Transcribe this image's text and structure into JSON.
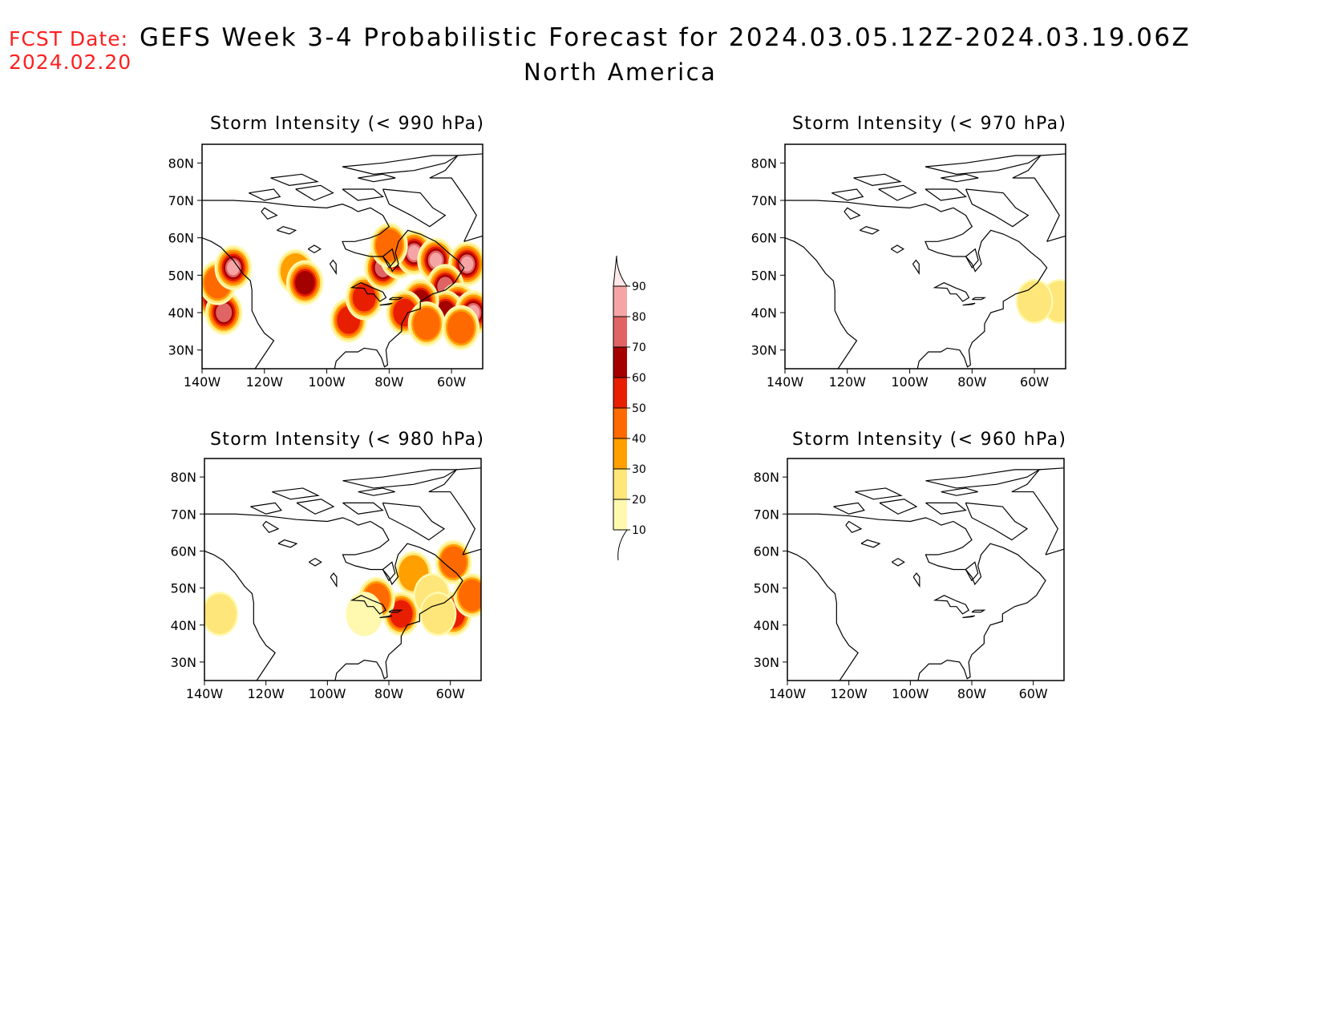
{
  "header": {
    "fcst_label": "FCST Date:",
    "fcst_date": "2024.02.20",
    "title": "GEFS Week 3-4 Probabilistic Forecast for 2024.03.05.12Z-2024.03.19.06Z",
    "region": "North America"
  },
  "panels": [
    {
      "id": "p990",
      "title": "Storm Intensity (< 990 hPa)"
    },
    {
      "id": "p970",
      "title": "Storm Intensity (< 970 hPa)"
    },
    {
      "id": "p980",
      "title": "Storm Intensity (< 980 hPa)"
    },
    {
      "id": "p960",
      "title": "Storm Intensity (< 960 hPa)"
    }
  ],
  "axes": {
    "lat_ticks": [
      "80N",
      "70N",
      "60N",
      "50N",
      "40N",
      "30N"
    ],
    "lon_ticks": [
      "140W",
      "120W",
      "100W",
      "80W",
      "60W"
    ],
    "lon_range": [
      -140,
      -50
    ],
    "lat_range": [
      25,
      85
    ]
  },
  "colorbar": {
    "levels": [
      10,
      20,
      30,
      40,
      50,
      60,
      70,
      80,
      90
    ],
    "colors": [
      "#fff9b0",
      "#ffe67a",
      "#ffa000",
      "#ff6a00",
      "#e81e00",
      "#a50000",
      "#e06464",
      "#f5a5a5",
      "#ffe8e8"
    ]
  },
  "chart_data": {
    "type": "heatmap",
    "units": "probability (%)",
    "panels": [
      {
        "id": "p990",
        "threshold_hPa": 990,
        "cells": [
          {
            "lon": -136,
            "lat": 44,
            "p": 65
          },
          {
            "lon": -133,
            "lat": 40,
            "p": 70
          },
          {
            "lon": -135,
            "lat": 48,
            "p": 45
          },
          {
            "lon": -130,
            "lat": 52,
            "p": 80
          },
          {
            "lon": -110,
            "lat": 51,
            "p": 35
          },
          {
            "lon": -107,
            "lat": 48,
            "p": 60
          },
          {
            "lon": -93,
            "lat": 38,
            "p": 55
          },
          {
            "lon": -88,
            "lat": 44,
            "p": 55
          },
          {
            "lon": -82,
            "lat": 52,
            "p": 70
          },
          {
            "lon": -77,
            "lat": 55,
            "p": 65
          },
          {
            "lon": -72,
            "lat": 56,
            "p": 85
          },
          {
            "lon": -65,
            "lat": 54,
            "p": 80
          },
          {
            "lon": -55,
            "lat": 53,
            "p": 85
          },
          {
            "lon": -62,
            "lat": 47,
            "p": 70
          },
          {
            "lon": -58,
            "lat": 42,
            "p": 85
          },
          {
            "lon": -62,
            "lat": 40,
            "p": 65
          },
          {
            "lon": -70,
            "lat": 43,
            "p": 60
          },
          {
            "lon": -75,
            "lat": 40,
            "p": 55
          },
          {
            "lon": -53,
            "lat": 40,
            "p": 85
          },
          {
            "lon": -80,
            "lat": 58,
            "p": 45
          },
          {
            "lon": -68,
            "lat": 37,
            "p": 45
          },
          {
            "lon": -57,
            "lat": 36,
            "p": 40
          }
        ]
      },
      {
        "id": "p970",
        "threshold_hPa": 970,
        "cells": [
          {
            "lon": -52,
            "lat": 43,
            "p": 25
          },
          {
            "lon": -60,
            "lat": 43,
            "p": 20
          }
        ]
      },
      {
        "id": "p980",
        "threshold_hPa": 980,
        "cells": [
          {
            "lon": -59,
            "lat": 43,
            "p": 55
          },
          {
            "lon": -76,
            "lat": 43,
            "p": 50
          },
          {
            "lon": -59,
            "lat": 57,
            "p": 40
          },
          {
            "lon": -53,
            "lat": 48,
            "p": 40
          },
          {
            "lon": -84,
            "lat": 47,
            "p": 40
          },
          {
            "lon": -72,
            "lat": 54,
            "p": 30
          },
          {
            "lon": -135,
            "lat": 43,
            "p": 25
          },
          {
            "lon": -66,
            "lat": 48,
            "p": 20
          },
          {
            "lon": -64,
            "lat": 43,
            "p": 20
          },
          {
            "lon": -88,
            "lat": 43,
            "p": 15
          }
        ]
      },
      {
        "id": "p960",
        "threshold_hPa": 960,
        "cells": []
      }
    ]
  }
}
